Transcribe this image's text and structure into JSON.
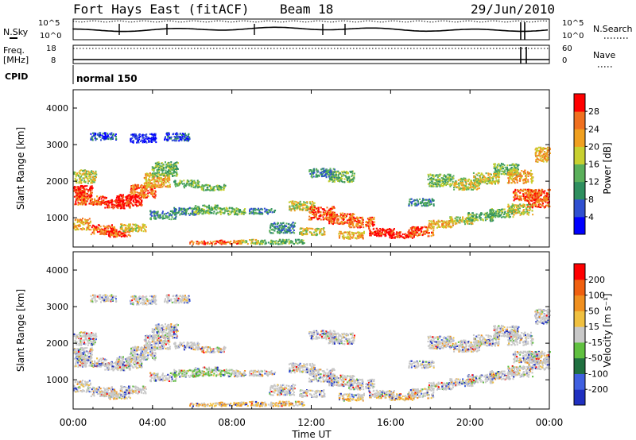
{
  "header": {
    "station": "Fort Hays East (fitACF)",
    "beam": "Beam 18",
    "date": "29/Jun/2010"
  },
  "noise_panel": {
    "left_label": "N.Sky",
    "right_label": "N.Search",
    "ticks_left": [
      "10^5",
      "10^0"
    ],
    "ticks_right": [
      "10^5",
      "10^0"
    ]
  },
  "freq_panel": {
    "left_label_1": "Freq.",
    "left_label_2": "[MHz]",
    "right_label": "Nave",
    "ticks_left": [
      "18",
      "8"
    ],
    "ticks_right": [
      "60",
      "0"
    ]
  },
  "cpid": {
    "label": "CPID",
    "program": "normal 150"
  },
  "chart_data": [
    {
      "type": "heatmap",
      "name": "power",
      "xlabel": "",
      "ylabel": "Slant Range [km]",
      "x_ticks": [
        "00:00",
        "04:00",
        "08:00",
        "12:00",
        "16:00",
        "20:00",
        "00:00"
      ],
      "y_ticks": [
        1000,
        2000,
        3000,
        4000
      ],
      "ylim": [
        200,
        4500
      ],
      "colorbar": {
        "label": "Power [dB]",
        "ticks": [
          "4",
          "8",
          "12",
          "16",
          "20",
          "24",
          "28"
        ],
        "colors": [
          "#0000ff",
          "#3050d0",
          "#2f8f5f",
          "#5bb05b",
          "#c8d030",
          "#f0a020",
          "#f07020",
          "#ff0000"
        ]
      }
    },
    {
      "type": "heatmap",
      "name": "velocity",
      "xlabel": "Time UT",
      "ylabel": "Slant Range [km]",
      "x_ticks": [
        "00:00",
        "04:00",
        "08:00",
        "12:00",
        "16:00",
        "20:00",
        "00:00"
      ],
      "y_ticks": [
        1000,
        2000,
        3000,
        4000
      ],
      "ylim": [
        200,
        4500
      ],
      "colorbar": {
        "label": "Velocity [m s⁻¹]",
        "ticks": [
          "200",
          "100",
          "50",
          "15",
          "-15",
          "-50",
          "-100",
          "-200"
        ],
        "colors": [
          "#2030c0",
          "#4060e0",
          "#207040",
          "#60c040",
          "#c8c8c8",
          "#f0c040",
          "#f09020",
          "#f06010",
          "#ff0000"
        ]
      }
    }
  ]
}
